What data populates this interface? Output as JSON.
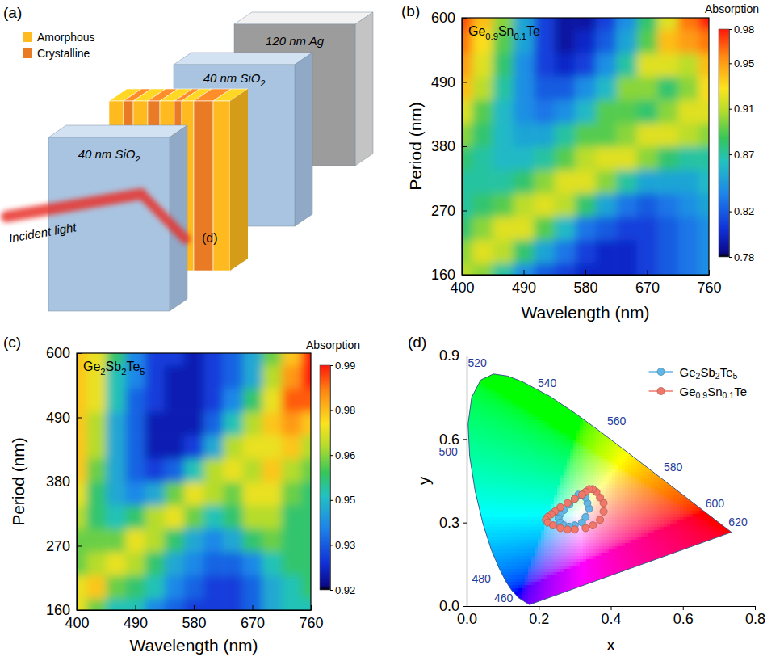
{
  "diagram": {
    "panel": "(a)",
    "phases": [
      {
        "name": "Amorphous",
        "color": "#ffba1f"
      },
      {
        "name": "Crystalline",
        "color": "#e97b24"
      }
    ],
    "layers": [
      "120 nm Ag",
      "40 nm SiO2",
      "40 nm SiO2"
    ],
    "incident_light": "Incident light",
    "label": "(d)"
  },
  "chart_data": [
    {
      "type": "heatmap",
      "panel": "(b)",
      "title": "Ge0.9Sn0.1Te",
      "x_label": "Wavelength (nm)",
      "y_label": "Period (nm)",
      "xlim": [
        400,
        760
      ],
      "ylim": [
        160,
        600
      ],
      "xticks": [
        400,
        490,
        580,
        670,
        760
      ],
      "yticks": [
        160,
        270,
        380,
        490,
        600
      ],
      "x": [
        400,
        430,
        460,
        490,
        520,
        550,
        580,
        610,
        640,
        670,
        700,
        730,
        760
      ],
      "y": [
        160,
        200,
        240,
        280,
        320,
        360,
        400,
        440,
        480,
        520,
        560,
        600
      ],
      "cells": [
        [
          0.91,
          0.9,
          0.87,
          0.84,
          0.82,
          0.81,
          0.8,
          0.8,
          0.8,
          0.81,
          0.82,
          0.83,
          0.84
        ],
        [
          0.9,
          0.92,
          0.91,
          0.88,
          0.85,
          0.83,
          0.81,
          0.8,
          0.8,
          0.81,
          0.82,
          0.83,
          0.84
        ],
        [
          0.88,
          0.9,
          0.92,
          0.92,
          0.89,
          0.86,
          0.83,
          0.82,
          0.81,
          0.81,
          0.82,
          0.83,
          0.84
        ],
        [
          0.87,
          0.88,
          0.89,
          0.91,
          0.92,
          0.91,
          0.88,
          0.85,
          0.83,
          0.82,
          0.83,
          0.84,
          0.85
        ],
        [
          0.87,
          0.87,
          0.87,
          0.88,
          0.9,
          0.92,
          0.92,
          0.9,
          0.87,
          0.85,
          0.85,
          0.85,
          0.86
        ],
        [
          0.88,
          0.87,
          0.86,
          0.86,
          0.87,
          0.89,
          0.91,
          0.92,
          0.92,
          0.9,
          0.88,
          0.87,
          0.87
        ],
        [
          0.9,
          0.88,
          0.86,
          0.85,
          0.85,
          0.87,
          0.89,
          0.89,
          0.9,
          0.92,
          0.92,
          0.91,
          0.9
        ],
        [
          0.92,
          0.89,
          0.86,
          0.84,
          0.83,
          0.84,
          0.86,
          0.89,
          0.89,
          0.88,
          0.9,
          0.92,
          0.92
        ],
        [
          0.94,
          0.91,
          0.87,
          0.84,
          0.82,
          0.82,
          0.84,
          0.86,
          0.9,
          0.9,
          0.88,
          0.9,
          0.93
        ],
        [
          0.95,
          0.92,
          0.88,
          0.84,
          0.81,
          0.8,
          0.81,
          0.84,
          0.87,
          0.92,
          0.92,
          0.91,
          0.94
        ],
        [
          0.96,
          0.93,
          0.89,
          0.85,
          0.81,
          0.79,
          0.8,
          0.82,
          0.85,
          0.89,
          0.94,
          0.95,
          0.96
        ],
        [
          0.97,
          0.94,
          0.9,
          0.85,
          0.81,
          0.79,
          0.79,
          0.81,
          0.84,
          0.88,
          0.92,
          0.96,
          0.98
        ]
      ],
      "colorbar": {
        "label": "Absorption",
        "range": [
          0.78,
          0.98
        ],
        "ticks": [
          0.78,
          0.82,
          0.87,
          0.91,
          0.95,
          0.98
        ]
      }
    },
    {
      "type": "heatmap",
      "panel": "(c)",
      "title": "Ge2Sb2Te5",
      "x_label": "Wavelength (nm)",
      "y_label": "Period (nm)",
      "xlim": [
        400,
        760
      ],
      "ylim": [
        160,
        600
      ],
      "xticks": [
        400,
        490,
        580,
        670,
        760
      ],
      "yticks": [
        160,
        270,
        380,
        490,
        600
      ],
      "x": [
        400,
        430,
        460,
        490,
        520,
        550,
        580,
        610,
        640,
        670,
        700,
        730,
        760
      ],
      "y": [
        160,
        200,
        240,
        280,
        320,
        360,
        400,
        440,
        480,
        520,
        560,
        600
      ],
      "cells": [
        [
          0.97,
          0.96,
          0.95,
          0.95,
          0.94,
          0.935,
          0.93,
          0.93,
          0.93,
          0.935,
          0.945,
          0.95,
          0.95
        ],
        [
          0.97,
          0.975,
          0.96,
          0.955,
          0.95,
          0.94,
          0.935,
          0.93,
          0.93,
          0.935,
          0.945,
          0.95,
          0.955
        ],
        [
          0.96,
          0.965,
          0.97,
          0.965,
          0.955,
          0.945,
          0.94,
          0.935,
          0.935,
          0.94,
          0.95,
          0.955,
          0.955
        ],
        [
          0.96,
          0.96,
          0.96,
          0.97,
          0.965,
          0.955,
          0.945,
          0.94,
          0.945,
          0.955,
          0.96,
          0.955,
          0.955
        ],
        [
          0.965,
          0.955,
          0.95,
          0.955,
          0.965,
          0.97,
          0.96,
          0.95,
          0.955,
          0.965,
          0.965,
          0.955,
          0.955
        ],
        [
          0.97,
          0.955,
          0.945,
          0.94,
          0.945,
          0.96,
          0.97,
          0.965,
          0.96,
          0.97,
          0.97,
          0.96,
          0.955
        ],
        [
          0.975,
          0.96,
          0.945,
          0.935,
          0.93,
          0.935,
          0.95,
          0.965,
          0.97,
          0.965,
          0.975,
          0.965,
          0.96
        ],
        [
          0.975,
          0.965,
          0.945,
          0.935,
          0.925,
          0.925,
          0.93,
          0.945,
          0.965,
          0.97,
          0.97,
          0.975,
          0.965
        ],
        [
          0.975,
          0.965,
          0.945,
          0.935,
          0.925,
          0.925,
          0.925,
          0.935,
          0.95,
          0.965,
          0.975,
          0.98,
          0.975
        ],
        [
          0.975,
          0.97,
          0.95,
          0.935,
          0.93,
          0.925,
          0.925,
          0.93,
          0.94,
          0.955,
          0.97,
          0.985,
          0.985
        ],
        [
          0.975,
          0.97,
          0.95,
          0.94,
          0.93,
          0.925,
          0.925,
          0.93,
          0.935,
          0.945,
          0.965,
          0.98,
          0.99
        ],
        [
          0.975,
          0.97,
          0.955,
          0.94,
          0.93,
          0.93,
          0.925,
          0.93,
          0.935,
          0.945,
          0.96,
          0.975,
          0.99
        ]
      ],
      "colorbar": {
        "label": "Absorption",
        "range": [
          0.92,
          0.99
        ],
        "ticks": [
          0.92,
          {
            "value": 0.934,
            "label": "0.93"
          },
          {
            "value": 0.948,
            "label": "0.95"
          },
          {
            "value": 0.962,
            "label": "0.96"
          },
          {
            "value": 0.976,
            "label": "0.98"
          },
          0.99
        ]
      }
    },
    {
      "type": "scatter",
      "panel": "(d)",
      "x_label": "x",
      "y_label": "y",
      "xlim": [
        0,
        0.8
      ],
      "ylim": [
        0,
        0.9
      ],
      "xticks": [
        {
          "value": 0,
          "label": "0.0"
        },
        0.2,
        0.4,
        0.6,
        0.8
      ],
      "yticks": [
        {
          "value": 0,
          "label": "0.0"
        },
        0.3,
        0.6,
        0.9
      ],
      "legend": "upper right",
      "series": [
        {
          "name": "Ge2Sb2Te5",
          "color": "#62b6e6",
          "marker": "circle",
          "line_style": "solid",
          "x": [
            0.3,
            0.32,
            0.33,
            0.34,
            0.335,
            0.33,
            0.32,
            0.31,
            0.3,
            0.285,
            0.27,
            0.26,
            0.255,
            0.26,
            0.27,
            0.285
          ],
          "y": [
            0.29,
            0.3,
            0.32,
            0.35,
            0.37,
            0.39,
            0.4,
            0.4,
            0.385,
            0.365,
            0.345,
            0.33,
            0.315,
            0.3,
            0.29,
            0.285
          ]
        },
        {
          "name": "Ge0.9Sn0.1Te",
          "color": "#f0786a",
          "marker": "circle",
          "line_style": "solid",
          "x": [
            0.33,
            0.35,
            0.37,
            0.38,
            0.38,
            0.37,
            0.36,
            0.35,
            0.34,
            0.33,
            0.32,
            0.3,
            0.28,
            0.26,
            0.245,
            0.235,
            0.225,
            0.22,
            0.225,
            0.24,
            0.26,
            0.28,
            0.3
          ],
          "y": [
            0.28,
            0.29,
            0.31,
            0.34,
            0.37,
            0.39,
            0.41,
            0.42,
            0.42,
            0.41,
            0.4,
            0.385,
            0.37,
            0.355,
            0.34,
            0.33,
            0.32,
            0.31,
            0.3,
            0.29,
            0.28,
            0.275,
            0.275
          ]
        }
      ],
      "spectral_locus": {
        "wavelength": [
          380,
          460,
          470,
          475,
          480,
          485,
          490,
          495,
          500,
          505,
          510,
          515,
          520,
          525,
          530,
          540,
          550,
          560,
          570,
          580,
          590,
          600,
          620,
          640,
          700
        ],
        "x": [
          0.1741,
          0.144,
          0.1241,
          0.1096,
          0.0913,
          0.0687,
          0.0454,
          0.0235,
          0.0082,
          0.0039,
          0.0139,
          0.0389,
          0.0743,
          0.1142,
          0.1547,
          0.2296,
          0.3016,
          0.3731,
          0.4441,
          0.5125,
          0.5752,
          0.627,
          0.6915,
          0.719,
          0.7347
        ],
        "y": [
          0.005,
          0.0297,
          0.0578,
          0.0868,
          0.1327,
          0.2007,
          0.295,
          0.4127,
          0.5384,
          0.6548,
          0.7502,
          0.812,
          0.8338,
          0.8262,
          0.8059,
          0.7543,
          0.6923,
          0.6245,
          0.5547,
          0.4866,
          0.4242,
          0.3725,
          0.3083,
          0.2809,
          0.2653
        ]
      },
      "locus_labels": [
        460,
        480,
        500,
        520,
        540,
        560,
        580,
        600,
        620
      ]
    }
  ]
}
